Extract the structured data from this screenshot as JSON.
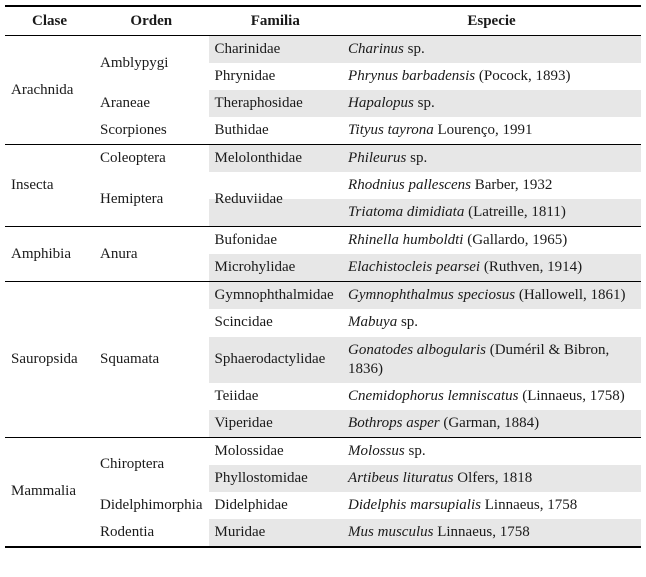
{
  "table": {
    "stripe_color": "#e7e7e7",
    "headers": [
      "Clase",
      "Orden",
      "Familia",
      "Especie"
    ],
    "groups": [
      {
        "clase": "Arachnida",
        "orders": [
          {
            "orden": "Amblypygi",
            "rows": [
              {
                "familia": "Charinidae",
                "shaded": true,
                "especie": [
                  {
                    "text": "Charinus",
                    "italic": true
                  },
                  {
                    "text": " sp.",
                    "italic": false
                  }
                ]
              },
              {
                "familia": "Phrynidae",
                "shaded": false,
                "especie": [
                  {
                    "text": "Phrynus barbadensis",
                    "italic": true
                  },
                  {
                    "text": " (Pocock, 1893)",
                    "italic": false
                  }
                ]
              }
            ]
          },
          {
            "orden": "Araneae",
            "rows": [
              {
                "familia": "Theraphosidae",
                "shaded": true,
                "especie": [
                  {
                    "text": "Hapalopus",
                    "italic": true
                  },
                  {
                    "text": " sp.",
                    "italic": false
                  }
                ]
              }
            ]
          },
          {
            "orden": "Scorpiones",
            "rows": [
              {
                "familia": "Buthidae",
                "shaded": false,
                "especie": [
                  {
                    "text": "Tityus tayrona",
                    "italic": true
                  },
                  {
                    "text": " Lourenço, 1991",
                    "italic": false
                  }
                ]
              }
            ]
          }
        ]
      },
      {
        "clase": "Insecta",
        "orders": [
          {
            "orden": "Coleoptera",
            "rows": [
              {
                "familia": "Melolonthidae",
                "shaded": true,
                "especie": [
                  {
                    "text": "Phileurus",
                    "italic": true
                  },
                  {
                    "text": " sp.",
                    "italic": false
                  }
                ]
              }
            ]
          },
          {
            "orden": "Hemiptera",
            "rows": [
              {
                "familia": "Reduviidae",
                "familia_rowspan": 2,
                "shaded": false,
                "especie": [
                  {
                    "text": "Rhodnius pallescens",
                    "italic": true
                  },
                  {
                    "text": " Barber, 1932",
                    "italic": false
                  }
                ]
              },
              {
                "familia_merged": true,
                "shaded": true,
                "especie": [
                  {
                    "text": "Triatoma dimidiata",
                    "italic": true
                  },
                  {
                    "text": " (Latreille, 1811)",
                    "italic": false
                  }
                ]
              }
            ]
          }
        ]
      },
      {
        "clase": "Amphibia",
        "orders": [
          {
            "orden": "Anura",
            "rows": [
              {
                "familia": "Bufonidae",
                "shaded": false,
                "especie": [
                  {
                    "text": "Rhinella humboldti",
                    "italic": true
                  },
                  {
                    "text": " (Gallardo, 1965)",
                    "italic": false
                  }
                ]
              },
              {
                "familia": "Microhylidae",
                "shaded": true,
                "especie": [
                  {
                    "text": "Elachistocleis pearsei",
                    "italic": true
                  },
                  {
                    "text": " (Ruthven, 1914)",
                    "italic": false
                  }
                ]
              }
            ]
          }
        ]
      },
      {
        "clase": "Sauropsida",
        "orders": [
          {
            "orden": "Squamata",
            "rows": [
              {
                "familia": "Gymnophthalmidae",
                "shaded": true,
                "especie": [
                  {
                    "text": "Gymnophthalmus speciosus",
                    "italic": true
                  },
                  {
                    "text": " (Hallowell, 1861)",
                    "italic": false
                  }
                ]
              },
              {
                "familia": "Scincidae",
                "shaded": false,
                "especie": [
                  {
                    "text": "Mabuya",
                    "italic": true
                  },
                  {
                    "text": " sp.",
                    "italic": false
                  }
                ]
              },
              {
                "familia": "Sphaerodactylidae",
                "shaded": true,
                "especie": [
                  {
                    "text": "Gonatodes albogularis",
                    "italic": true
                  },
                  {
                    "text": " (Duméril & Bibron, 1836)",
                    "italic": false
                  }
                ]
              },
              {
                "familia": "Teiidae",
                "shaded": false,
                "especie": [
                  {
                    "text": "Cnemidophorus lemniscatus",
                    "italic": true
                  },
                  {
                    "text": " (Linnaeus, 1758)",
                    "italic": false
                  }
                ]
              },
              {
                "familia": "Viperidae",
                "shaded": true,
                "especie": [
                  {
                    "text": "Bothrops asper",
                    "italic": true
                  },
                  {
                    "text": " (Garman, 1884)",
                    "italic": false
                  }
                ]
              }
            ]
          }
        ]
      },
      {
        "clase": "Mammalia",
        "orders": [
          {
            "orden": "Chiroptera",
            "rows": [
              {
                "familia": "Molossidae",
                "shaded": false,
                "especie": [
                  {
                    "text": "Molossus",
                    "italic": true
                  },
                  {
                    "text": " sp.",
                    "italic": false
                  }
                ]
              },
              {
                "familia": "Phyllostomidae",
                "shaded": true,
                "especie": [
                  {
                    "text": "Artibeus lituratus",
                    "italic": true
                  },
                  {
                    "text": " Olfers, 1818",
                    "italic": false
                  }
                ]
              }
            ]
          },
          {
            "orden": "Didelphimorphia",
            "rows": [
              {
                "familia": "Didelphidae",
                "shaded": false,
                "especie": [
                  {
                    "text": "Didelphis marsupialis",
                    "italic": true
                  },
                  {
                    "text": " Linnaeus, 1758",
                    "italic": false
                  }
                ]
              }
            ]
          },
          {
            "orden": "Rodentia",
            "rows": [
              {
                "familia": "Muridae",
                "shaded": true,
                "especie": [
                  {
                    "text": "Mus musculus",
                    "italic": true
                  },
                  {
                    "text": " Linnaeus, 1758",
                    "italic": false
                  }
                ]
              }
            ]
          }
        ]
      }
    ]
  }
}
